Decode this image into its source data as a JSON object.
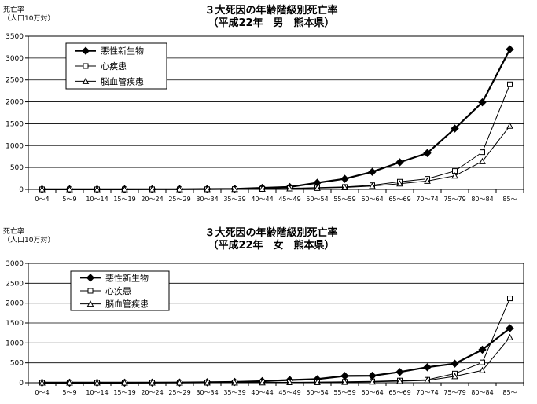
{
  "chart_data": [
    {
      "type": "line",
      "title": "３大死因の年齢階級別死亡率",
      "subtitle": "（平成22年　男　熊本県）",
      "ylabel": "死亡率",
      "ylabel_sub": "（人口10万対）",
      "ylim": [
        0,
        3500
      ],
      "yticks": [
        0,
        500,
        1000,
        1500,
        2000,
        2500,
        3000,
        3500
      ],
      "categories": [
        "0～4",
        "5～9",
        "10～14",
        "15～19",
        "20～24",
        "25～29",
        "30～34",
        "35～39",
        "40～44",
        "45～49",
        "50～54",
        "55～59",
        "60～64",
        "65～69",
        "70～74",
        "75～79",
        "80～84",
        "85～"
      ],
      "grid": true,
      "legend_position": "top-left",
      "series": [
        {
          "name": "悪性新生物",
          "marker": "diamond-filled",
          "color": "#000000",
          "values": [
            2,
            2,
            2,
            2,
            3,
            4,
            8,
            12,
            35,
            55,
            150,
            240,
            400,
            620,
            830,
            1390,
            1990,
            3200
          ]
        },
        {
          "name": "心疾患",
          "marker": "square-open",
          "color": "#000000",
          "values": [
            1,
            1,
            1,
            1,
            2,
            2,
            3,
            6,
            12,
            25,
            40,
            55,
            95,
            175,
            240,
            420,
            850,
            2400
          ]
        },
        {
          "name": "脳血管疾患",
          "marker": "triangle-open",
          "color": "#000000",
          "values": [
            0,
            0,
            0,
            0,
            1,
            1,
            2,
            4,
            10,
            18,
            30,
            45,
            75,
            130,
            190,
            310,
            640,
            1450
          ]
        }
      ]
    },
    {
      "type": "line",
      "title": "３大死因の年齢階級別死亡率",
      "subtitle": "（平成22年　女　熊本県）",
      "ylabel": "死亡率",
      "ylabel_sub": "（人口10万対）",
      "ylim": [
        0,
        3000
      ],
      "yticks": [
        0,
        500,
        1000,
        1500,
        2000,
        2500,
        3000
      ],
      "categories": [
        "0～4",
        "5～9",
        "10～14",
        "15～19",
        "20～24",
        "25～29",
        "30～34",
        "35～39",
        "40～44",
        "45～49",
        "50～54",
        "55～59",
        "60～64",
        "65～69",
        "70～74",
        "75～79",
        "80～84",
        "85～"
      ],
      "grid": true,
      "legend_position": "top-left",
      "series": [
        {
          "name": "悪性新生物",
          "marker": "diamond-filled",
          "color": "#000000",
          "values": [
            2,
            2,
            2,
            2,
            3,
            5,
            12,
            20,
            40,
            70,
            90,
            170,
            175,
            270,
            390,
            480,
            830,
            1370
          ]
        },
        {
          "name": "心疾患",
          "marker": "square-open",
          "color": "#000000",
          "values": [
            1,
            1,
            1,
            1,
            1,
            2,
            3,
            5,
            8,
            12,
            15,
            25,
            35,
            55,
            75,
            230,
            510,
            2120
          ]
        },
        {
          "name": "脳血管疾患",
          "marker": "triangle-open",
          "color": "#000000",
          "values": [
            0,
            0,
            0,
            0,
            1,
            1,
            2,
            3,
            6,
            10,
            12,
            18,
            25,
            40,
            60,
            160,
            310,
            1140
          ]
        }
      ]
    }
  ]
}
